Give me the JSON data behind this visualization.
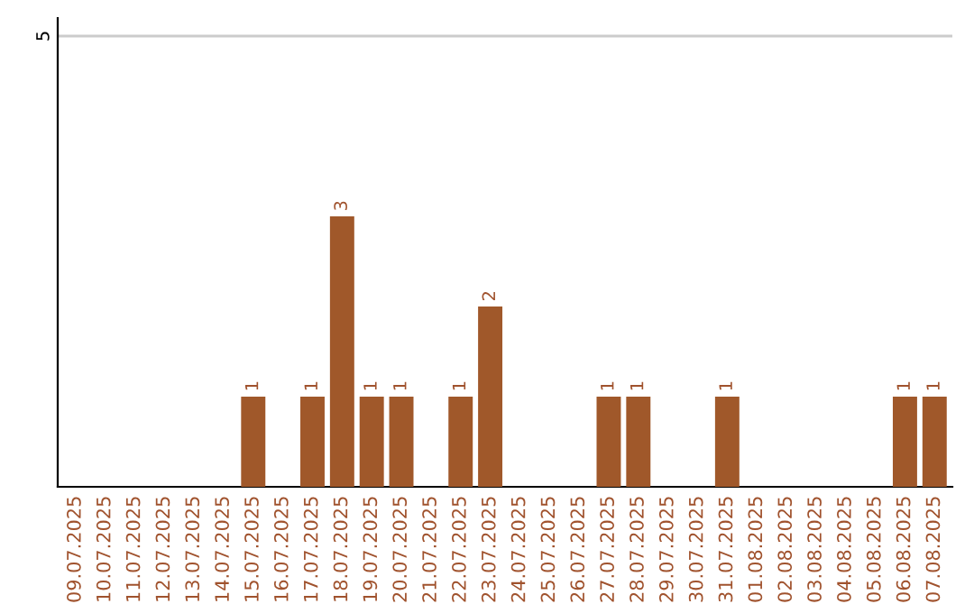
{
  "chart_data": {
    "type": "bar",
    "categories": [
      "09.07.2025",
      "10.07.2025",
      "11.07.2025",
      "12.07.2025",
      "13.07.2025",
      "14.07.2025",
      "15.07.2025",
      "16.07.2025",
      "17.07.2025",
      "18.07.2025",
      "19.07.2025",
      "20.07.2025",
      "21.07.2025",
      "22.07.2025",
      "23.07.2025",
      "24.07.2025",
      "25.07.2025",
      "26.07.2025",
      "27.07.2025",
      "28.07.2025",
      "29.07.2025",
      "30.07.2025",
      "31.07.2025",
      "01.08.2025",
      "02.08.2025",
      "03.08.2025",
      "04.08.2025",
      "05.08.2025",
      "06.08.2025",
      "07.08.2025"
    ],
    "series": [
      {
        "color": "#a0582a",
        "values": [
          0,
          0,
          0,
          0,
          0,
          0,
          1,
          0,
          1,
          3,
          1,
          1,
          0,
          1,
          2,
          0,
          0,
          0,
          1,
          1,
          0,
          0,
          1,
          0,
          0,
          0,
          0,
          0,
          1,
          1
        ],
        "value_labels": [
          null,
          null,
          null,
          null,
          null,
          null,
          "1",
          null,
          "1",
          "3",
          "1",
          "1",
          null,
          "1",
          "2",
          null,
          null,
          null,
          "1",
          "1",
          null,
          null,
          "1",
          null,
          null,
          null,
          null,
          null,
          "1",
          "1"
        ]
      }
    ],
    "ylim": [
      0,
      5.2
    ],
    "yticks": [
      5
    ],
    "grid": "y",
    "legend": false
  }
}
